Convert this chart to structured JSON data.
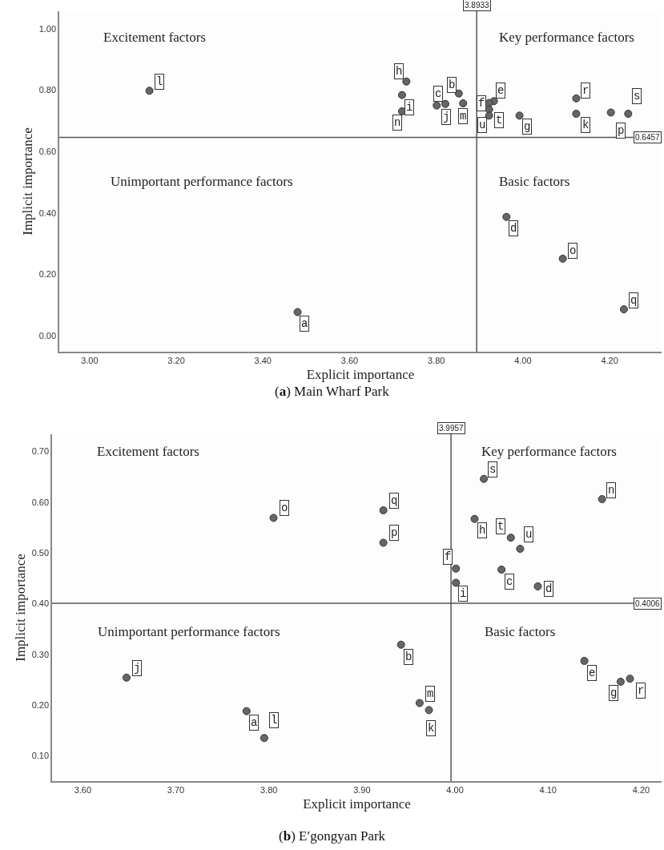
{
  "chart_data": [
    {
      "type": "scatter",
      "title": "(a) Main Wharf Park",
      "xlabel": "Explicit importance",
      "ylabel": "Implicit importance",
      "xlim": [
        2.93,
        4.32
      ],
      "ylim": [
        -0.052,
        1.057
      ],
      "xticks": [
        {
          "value": 3.0,
          "label": "3.00"
        },
        {
          "value": 3.2,
          "label": "3.20"
        },
        {
          "value": 3.4,
          "label": "3.40"
        },
        {
          "value": 3.6,
          "label": "3.60"
        },
        {
          "value": 3.8,
          "label": "3.80"
        },
        {
          "value": 4.0,
          "label": "4.00"
        },
        {
          "value": 4.2,
          "label": "4.20"
        }
      ],
      "yticks": [
        {
          "value": 0.0,
          "label": "0.00"
        },
        {
          "value": 0.2,
          "label": "0.20"
        },
        {
          "value": 0.4,
          "label": "0.40"
        },
        {
          "value": 0.6,
          "label": "0.60"
        },
        {
          "value": 0.8,
          "label": "0.80"
        },
        {
          "value": 1.0,
          "label": "1.00"
        }
      ],
      "grid": false,
      "marker": "circle",
      "series": [
        {
          "color": "#666666",
          "x": [
            3.48,
            3.852,
            3.801,
            3.962,
            3.933,
            3.922,
            3.992,
            3.731,
            3.721,
            3.821,
            4.123,
            3.138,
            3.862,
            3.721,
            4.092,
            4.203,
            4.233,
            4.123,
            4.243,
            3.922,
            3.922
          ],
          "values": [
            0.077,
            0.789,
            0.75,
            0.387,
            0.764,
            0.758,
            0.717,
            0.828,
            0.784,
            0.755,
            0.723,
            0.798,
            0.757,
            0.731,
            0.251,
            0.727,
            0.086,
            0.773,
            0.723,
            0.737,
            0.717
          ],
          "value_labels": [
            "a",
            "b",
            "c",
            "d",
            "e",
            "f",
            "g",
            "h",
            "i",
            "j",
            "k",
            "l",
            "m",
            "n",
            "o",
            "p",
            "q",
            "r",
            "s",
            "t",
            "u"
          ]
        }
      ],
      "ref_lines": [
        {
          "axis": "x",
          "value": 3.8933,
          "label": "3.8933"
        },
        {
          "axis": "y",
          "value": 0.6457,
          "label": "0.6457"
        }
      ],
      "annotations": [
        "Excitement factors",
        "Key performance factors",
        "Unimportant performance factors",
        "Basic factors"
      ]
    },
    {
      "type": "scatter",
      "title": "(b) E′gongyan Park",
      "xlabel": "Explicit importance",
      "ylabel": "Implicit importance",
      "xlim": [
        3.567,
        4.222
      ],
      "ylim": [
        0.05,
        0.734
      ],
      "xticks": [
        {
          "value": 3.6,
          "label": "3.60"
        },
        {
          "value": 3.7,
          "label": "3.70"
        },
        {
          "value": 3.8,
          "label": "3.80"
        },
        {
          "value": 3.9,
          "label": "3.90"
        },
        {
          "value": 4.0,
          "label": "4.00"
        },
        {
          "value": 4.1,
          "label": "4.10"
        },
        {
          "value": 4.2,
          "label": "4.20"
        }
      ],
      "yticks": [
        {
          "value": 0.1,
          "label": "0.10"
        },
        {
          "value": 0.2,
          "label": "0.20"
        },
        {
          "value": 0.3,
          "label": "0.30"
        },
        {
          "value": 0.4,
          "label": "0.40"
        },
        {
          "value": 0.5,
          "label": "0.50"
        },
        {
          "value": 0.6,
          "label": "0.60"
        },
        {
          "value": 0.7,
          "label": "0.70"
        }
      ],
      "grid": false,
      "marker": "circle",
      "series": [
        {
          "color": "#666666",
          "x": [
            3.776,
            3.942,
            4.05,
            4.089,
            4.139,
            4.001,
            4.178,
            4.021,
            4.001,
            3.647,
            3.972,
            3.795,
            3.962,
            4.158,
            3.805,
            3.923,
            3.923,
            4.188,
            4.031,
            4.06,
            4.07
          ],
          "values": [
            0.188,
            0.319,
            0.467,
            0.434,
            0.287,
            0.469,
            0.246,
            0.567,
            0.441,
            0.254,
            0.19,
            0.135,
            0.204,
            0.606,
            0.569,
            0.52,
            0.584,
            0.252,
            0.646,
            0.53,
            0.508
          ],
          "value_labels": [
            "a",
            "b",
            "c",
            "d",
            "e",
            "f",
            "g",
            "h",
            "i",
            "j",
            "k",
            "l",
            "m",
            "n",
            "o",
            "p",
            "q",
            "r",
            "s",
            "t",
            "u"
          ]
        }
      ],
      "ref_lines": [
        {
          "axis": "x",
          "value": 3.9957,
          "label": "3.9957"
        },
        {
          "axis": "y",
          "value": 0.4006,
          "label": "0.4006"
        }
      ],
      "annotations": [
        "Excitement factors",
        "Key performance factors",
        "Unimportant performance factors",
        "Basic factors"
      ]
    }
  ]
}
